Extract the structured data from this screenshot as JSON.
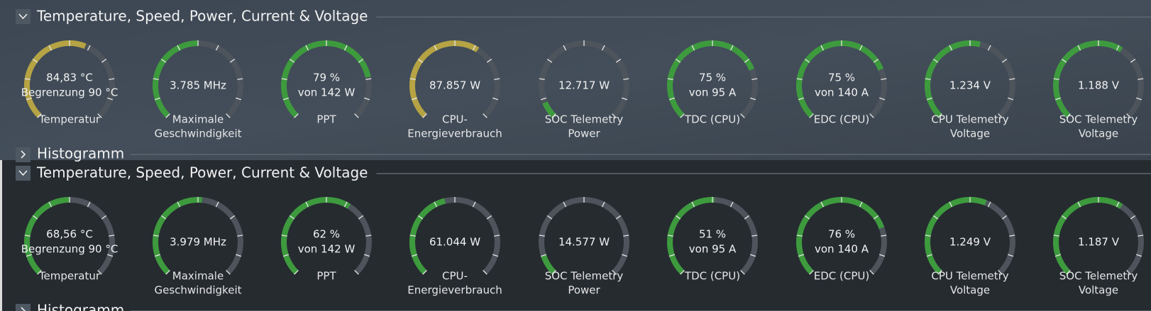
{
  "panels": [
    {
      "title": "Temperature, Speed, Power, Current & Voltage",
      "collapsed_title": "Histogramm",
      "gauges": [
        {
          "value": "84,83 °C",
          "sub": "Begrenzung 90 °C",
          "label": [
            "Temperatur"
          ],
          "level": 58,
          "color": "#b5a344"
        },
        {
          "value": "3.785  MHz",
          "label": [
            "Maximale",
            "Geschwindigkeit"
          ],
          "level": 50,
          "color": "#3d9b3d"
        },
        {
          "value": "79 %",
          "sub": "von 142 W",
          "label": [
            "PPT"
          ],
          "level": 79,
          "color": "#3d9b3d"
        },
        {
          "value": "87.857 W",
          "label": [
            "CPU-",
            "Energieverbrauch"
          ],
          "level": 62,
          "color": "#b5a344"
        },
        {
          "value": "12.717 W",
          "label": [
            "SOC Telemetry",
            "Power"
          ],
          "level": 8,
          "color": "#3d9b3d"
        },
        {
          "value": "75 %",
          "sub": "von 95 A",
          "label": [
            "TDC (CPU)"
          ],
          "level": 75,
          "color": "#3d9b3d"
        },
        {
          "value": "75 %",
          "sub": "von 140 A",
          "label": [
            "EDC (CPU)"
          ],
          "level": 75,
          "color": "#3d9b3d"
        },
        {
          "value": "1.234 V",
          "label": [
            "CPU Telemetry",
            "Voltage"
          ],
          "level": 55,
          "color": "#3d9b3d"
        },
        {
          "value": "1.188 V",
          "label": [
            "SOC Telemetry",
            "Voltage"
          ],
          "level": 62,
          "color": "#3d9b3d"
        }
      ]
    },
    {
      "title": "Temperature, Speed, Power, Current & Voltage",
      "collapsed_title": "Histogramm",
      "gauges": [
        {
          "value": "68,56 °C",
          "sub": "Begrenzung 90 °C",
          "label": [
            "Temperatur"
          ],
          "level": 50,
          "color": "#3d9b3d"
        },
        {
          "value": "3.979  MHz",
          "label": [
            "Maximale",
            "Geschwindigkeit"
          ],
          "level": 52,
          "color": "#3d9b3d"
        },
        {
          "value": "62 %",
          "sub": "von 142 W",
          "label": [
            "PPT"
          ],
          "level": 62,
          "color": "#3d9b3d"
        },
        {
          "value": "61.044 W",
          "label": [
            "CPU-",
            "Energieverbrauch"
          ],
          "level": 45,
          "color": "#3d9b3d"
        },
        {
          "value": "14.577 W",
          "label": [
            "SOC Telemetry",
            "Power"
          ],
          "level": 10,
          "color": "#3d9b3d"
        },
        {
          "value": "51 %",
          "sub": "von 95 A",
          "label": [
            "TDC (CPU)"
          ],
          "level": 51,
          "color": "#3d9b3d"
        },
        {
          "value": "76 %",
          "sub": "von 140 A",
          "label": [
            "EDC (CPU)"
          ],
          "level": 76,
          "color": "#3d9b3d"
        },
        {
          "value": "1.249 V",
          "label": [
            "CPU Telemetry",
            "Voltage"
          ],
          "level": 58,
          "color": "#3d9b3d"
        },
        {
          "value": "1.187 V",
          "label": [
            "SOC Telemetry",
            "Voltage"
          ],
          "level": 62,
          "color": "#3d9b3d"
        }
      ]
    }
  ]
}
